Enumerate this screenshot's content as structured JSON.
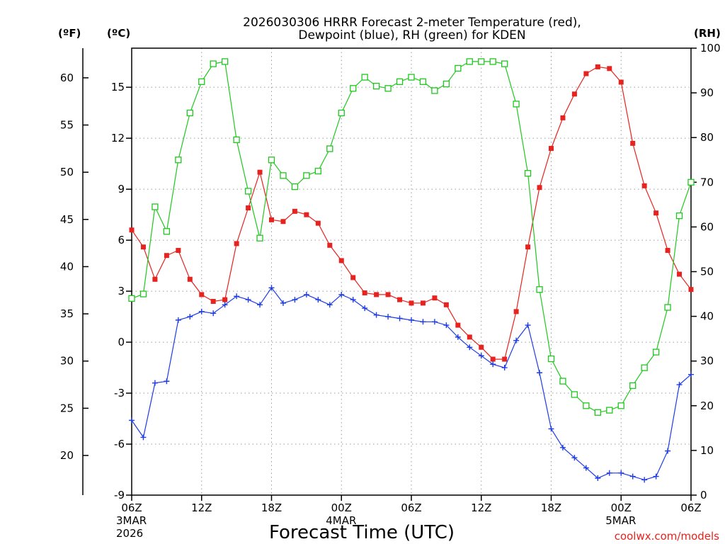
{
  "chart_data": {
    "type": "line",
    "title": [
      "2026030306 HRRR Forecast 2-meter Temperature (red),",
      "Dewpoint (blue), RH (green) for KDEN"
    ],
    "xlabel": "Forecast Time (UTC)",
    "credit": "coolwx.com/models",
    "units": {
      "fahrenheit": "(ºF)",
      "celsius": "(ºC)",
      "rh": "(RH)"
    },
    "x_range": [
      0,
      48
    ],
    "x_ticks": [
      {
        "x": 0,
        "label": "06Z",
        "sub1": "3MAR",
        "sub2": "2026"
      },
      {
        "x": 6,
        "label": "12Z",
        "sub1": "",
        "sub2": ""
      },
      {
        "x": 12,
        "label": "18Z",
        "sub1": "",
        "sub2": ""
      },
      {
        "x": 18,
        "label": "00Z",
        "sub1": "4MAR",
        "sub2": ""
      },
      {
        "x": 24,
        "label": "06Z",
        "sub1": "",
        "sub2": ""
      },
      {
        "x": 30,
        "label": "12Z",
        "sub1": "",
        "sub2": ""
      },
      {
        "x": 36,
        "label": "18Z",
        "sub1": "",
        "sub2": ""
      },
      {
        "x": 42,
        "label": "00Z",
        "sub1": "5MAR",
        "sub2": ""
      },
      {
        "x": 48,
        "label": "06Z",
        "sub1": "",
        "sub2": ""
      }
    ],
    "c_range": [
      -9,
      17.3
    ],
    "c_ticks": [
      "-9",
      "-6",
      "-3",
      "0",
      "3",
      "6",
      "9",
      "12",
      "15"
    ],
    "f_ticks": [
      "20",
      "25",
      "30",
      "35",
      "40",
      "45",
      "50",
      "55",
      "60"
    ],
    "rh_range": [
      0,
      100
    ],
    "rh_ticks": [
      "0",
      "10",
      "20",
      "30",
      "40",
      "50",
      "60",
      "70",
      "80",
      "90",
      "100"
    ],
    "grid": true,
    "colors": {
      "temperature": "#e6231e",
      "dewpoint": "#1e3ce6",
      "rh": "#1ec81e"
    },
    "series": [
      {
        "key": "temperature",
        "axis": "celsius",
        "marker": "filled-square",
        "values": [
          6.6,
          5.6,
          3.7,
          5.1,
          5.4,
          3.7,
          2.8,
          2.4,
          2.5,
          5.8,
          7.9,
          10.0,
          7.2,
          7.1,
          7.7,
          7.5,
          7.0,
          5.7,
          4.8,
          3.8,
          2.9,
          2.8,
          2.8,
          2.5,
          2.3,
          2.3,
          2.6,
          2.2,
          1.0,
          0.3,
          -0.3,
          -1.0,
          -1.0,
          1.8,
          5.6,
          9.1,
          11.4,
          13.2,
          14.6,
          15.8,
          16.2,
          16.1,
          15.3,
          11.7,
          9.2,
          7.6,
          5.4,
          4.0,
          3.1
        ]
      },
      {
        "key": "dewpoint",
        "axis": "celsius",
        "marker": "plus",
        "values": [
          -4.6,
          -5.6,
          -2.4,
          -2.3,
          1.3,
          1.5,
          1.8,
          1.7,
          2.2,
          2.7,
          2.5,
          2.2,
          3.2,
          2.3,
          2.5,
          2.8,
          2.5,
          2.2,
          2.8,
          2.5,
          2.0,
          1.6,
          1.5,
          1.4,
          1.3,
          1.2,
          1.2,
          1.0,
          0.3,
          -0.3,
          -0.8,
          -1.3,
          -1.5,
          0.1,
          1.0,
          -1.8,
          -5.1,
          -6.2,
          -6.8,
          -7.4,
          -8.0,
          -7.7,
          -7.7,
          -7.9,
          -8.1,
          -7.9,
          -6.4,
          -2.5,
          -1.9
        ]
      },
      {
        "key": "rh",
        "axis": "rh",
        "marker": "open-square",
        "values": [
          44,
          45,
          64.5,
          59,
          75,
          85.5,
          92.5,
          96.5,
          97,
          79.5,
          68,
          57.5,
          75,
          71.5,
          69,
          71.5,
          72.5,
          77.5,
          85.5,
          91,
          93.5,
          91.5,
          91,
          92.5,
          93.5,
          92.5,
          90.5,
          92,
          95.5,
          97,
          97,
          97,
          96.5,
          87.5,
          72,
          46,
          30.5,
          25.5,
          22.5,
          20,
          18.5,
          19,
          20,
          24.5,
          28.5,
          32,
          42,
          62.5,
          70
        ]
      }
    ]
  }
}
